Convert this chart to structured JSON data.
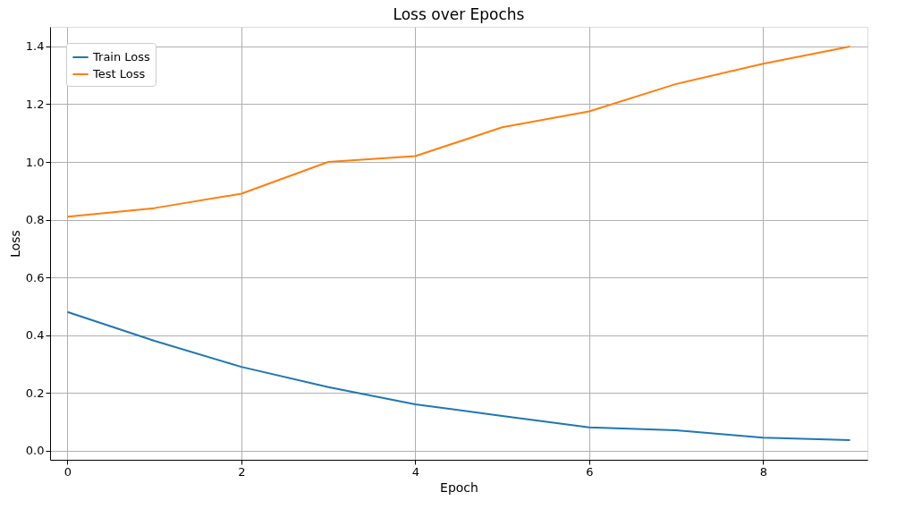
{
  "chart_data": {
    "type": "line",
    "title": "Loss over Epochs",
    "xlabel": "Epoch",
    "ylabel": "Loss",
    "x": [
      0,
      1,
      2,
      3,
      4,
      5,
      6,
      7,
      8,
      9
    ],
    "series": [
      {
        "name": "Train Loss",
        "color": "#1f77b4",
        "values": [
          0.48,
          0.38,
          0.29,
          0.22,
          0.16,
          0.12,
          0.08,
          0.07,
          0.045,
          0.036
        ]
      },
      {
        "name": "Test Loss",
        "color": "#ff7f0e",
        "values": [
          0.81,
          0.84,
          0.89,
          1.0,
          1.02,
          1.12,
          1.175,
          1.27,
          1.34,
          1.4
        ]
      }
    ],
    "xlim": [
      -0.2,
      9.2
    ],
    "xticks": [
      0,
      2,
      4,
      6,
      8
    ],
    "ylim": [
      -0.032,
      1.468
    ],
    "yticks": [
      {
        "value": 0,
        "label": "0.0"
      },
      {
        "value": 0.2,
        "label": "0.2"
      },
      {
        "value": 0.4,
        "label": "0.4"
      },
      {
        "value": 0.6,
        "label": "0.6"
      },
      {
        "value": 0.8,
        "label": "0.8"
      },
      {
        "value": 1.0,
        "label": "1.0"
      },
      {
        "value": 1.2,
        "label": "1.2"
      },
      {
        "value": 1.4,
        "label": "1.4"
      }
    ],
    "grid": true,
    "legend": "top left",
    "marker": "none",
    "line_style": "solid"
  }
}
